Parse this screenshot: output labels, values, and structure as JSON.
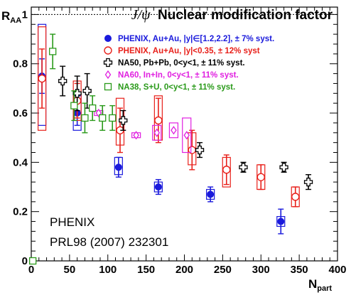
{
  "chart_data": {
    "type": "scatter",
    "title": "J/ψ Nuclear modification factor",
    "title_parts": {
      "symbol": "J/ψ",
      "text": "Nuclear modification factor"
    },
    "xlabel": {
      "main": "N",
      "sub": "part"
    },
    "ylabel": {
      "main": "R",
      "sub": "AA"
    },
    "xlim": [
      0,
      400
    ],
    "ylim": [
      0,
      1.03
    ],
    "xticks": [
      0,
      50,
      100,
      150,
      200,
      250,
      300,
      350,
      400
    ],
    "xtick_labels": [
      "0",
      "50",
      "100",
      "150",
      "200",
      "250",
      "300",
      "350",
      "400"
    ],
    "yticks": [
      0,
      0.2,
      0.4,
      0.6,
      0.8,
      1
    ],
    "ytick_labels": [
      "0",
      "0.2",
      "0.4",
      "0.6",
      "0.8",
      "1"
    ],
    "reference_line": 1.0,
    "grid": false,
    "legend_position": "top-right",
    "annotation": [
      "PHENIX",
      "PRL98 (2007) 232301"
    ],
    "series": [
      {
        "name": "PHENIX, Au+Au, |y|∈[1.2,2.2], ± 7% syst.",
        "marker": "filled-circle",
        "color": "#1a1adc",
        "points": [
          {
            "x": 14,
            "y": 0.75,
            "err": 0.07,
            "syst": [
              0.55,
              0.96
            ]
          },
          {
            "x": 60,
            "y": 0.6,
            "err": 0.05,
            "syst": [
              0.53,
              0.67
            ]
          },
          {
            "x": 114,
            "y": 0.38,
            "err": 0.04,
            "syst": [
              0.35,
              0.42
            ]
          },
          {
            "x": 166,
            "y": 0.3,
            "err": 0.03,
            "syst": [
              0.28,
              0.32
            ]
          },
          {
            "x": 234,
            "y": 0.27,
            "err": 0.03,
            "syst": [
              0.25,
              0.29
            ]
          },
          {
            "x": 326,
            "y": 0.16,
            "err": 0.05,
            "syst": [
              0.14,
              0.18
            ]
          }
        ]
      },
      {
        "name": "PHENIX, Au+Au, |y|<0.35, ± 12% syst",
        "marker": "open-circle",
        "color": "#e8201a",
        "points": [
          {
            "x": 14,
            "y": 0.74,
            "err": 0.12,
            "syst": [
              0.53,
              0.95
            ]
          },
          {
            "x": 60,
            "y": 0.65,
            "err": 0.07,
            "syst": [
              0.57,
              0.73
            ]
          },
          {
            "x": 116,
            "y": 0.53,
            "err": 0.09,
            "syst": [
              0.47,
              0.66
            ]
          },
          {
            "x": 166,
            "y": 0.57,
            "err": 0.09,
            "syst": [
              0.49,
              0.67
            ]
          },
          {
            "x": 210,
            "y": 0.45,
            "err": 0.08,
            "syst": [
              0.39,
              0.52
            ]
          },
          {
            "x": 255,
            "y": 0.37,
            "err": 0.06,
            "syst": [
              0.3,
              0.42
            ]
          },
          {
            "x": 300,
            "y": 0.34,
            "err": 0.05,
            "syst": [
              0.29,
              0.39
            ]
          },
          {
            "x": 345,
            "y": 0.26,
            "err": 0.04,
            "syst": [
              0.22,
              0.3
            ]
          }
        ]
      },
      {
        "name": "NA50, Pb+Pb, 0<y<1, ± 11% syst.",
        "marker": "open-cross",
        "color": "#000000",
        "points": [
          {
            "x": 41,
            "y": 0.73,
            "err": 0.06
          },
          {
            "x": 60,
            "y": 0.68,
            "err": 0.07
          },
          {
            "x": 73,
            "y": 0.69,
            "err": 0.07
          },
          {
            "x": 120,
            "y": 0.57,
            "err": 0.04
          },
          {
            "x": 220,
            "y": 0.45,
            "err": 0.03
          },
          {
            "x": 277,
            "y": 0.38,
            "err": 0.02
          },
          {
            "x": 330,
            "y": 0.38,
            "err": 0.02
          },
          {
            "x": 362,
            "y": 0.32,
            "err": 0.03
          }
        ]
      },
      {
        "name": "NA60, In+In, 0<y<1, ± 11% syst.",
        "marker": "open-diamond",
        "color": "#e020e0",
        "points": [
          {
            "x": 88,
            "y": 0.6,
            "err": 0.0,
            "syst": [
              0.59,
              0.61
            ]
          },
          {
            "x": 137,
            "y": 0.51,
            "err": 0.0,
            "syst": [
              0.5,
              0.52
            ]
          },
          {
            "x": 164,
            "y": 0.52,
            "err": 0.0,
            "syst": [
              0.49,
              0.55
            ]
          },
          {
            "x": 186,
            "y": 0.53,
            "err": 0.0,
            "syst": [
              0.5,
              0.56
            ]
          },
          {
            "x": 203,
            "y": 0.51,
            "err": 0.0,
            "syst": [
              0.44,
              0.58
            ]
          }
        ]
      },
      {
        "name": "NA38, S+U, 0<y<1, ± 11% syst.",
        "marker": "open-square",
        "color": "#2a9a1a",
        "points": [
          {
            "x": 2,
            "y": 0.0,
            "err": 0.0
          },
          {
            "x": 28,
            "y": 0.85,
            "err": 0.07
          },
          {
            "x": 56,
            "y": 0.63,
            "err": 0.06
          },
          {
            "x": 70,
            "y": 0.58,
            "err": 0.06
          },
          {
            "x": 80,
            "y": 0.62,
            "err": 0.05
          },
          {
            "x": 93,
            "y": 0.58,
            "err": 0.05
          },
          {
            "x": 106,
            "y": 0.58,
            "err": 0.05
          }
        ]
      }
    ]
  }
}
